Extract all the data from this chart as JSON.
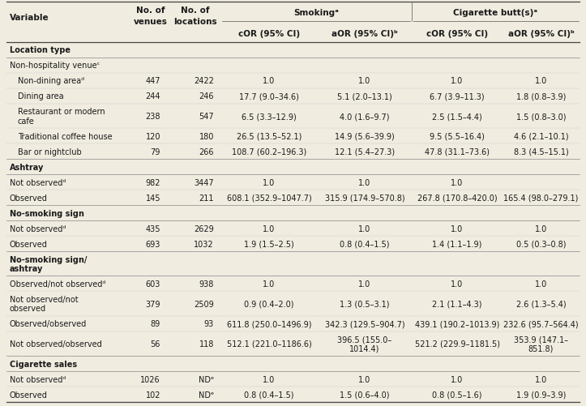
{
  "background_color": "#f0ece0",
  "text_color": "#1a1a1a",
  "smoking_header": "Smokingᵃ",
  "cigarette_header": "Cigarette butt(s)ᵃ",
  "col_sub_headers": [
    "cOR (95% CI)",
    "aOR (95% CI)ᵇ",
    "cOR (95% CI)",
    "aOR (95% CI)ᵇ"
  ],
  "rows": [
    {
      "label": "Location type",
      "bold": true,
      "indent": 0,
      "venues": "",
      "locations": "",
      "s_cor": "",
      "s_aor": "",
      "c_cor": "",
      "c_aor": "",
      "section_header": true,
      "multiline": false
    },
    {
      "label": "Non-hospitality venueᶜ",
      "bold": false,
      "indent": 0,
      "venues": "",
      "locations": "",
      "s_cor": "",
      "s_aor": "",
      "c_cor": "",
      "c_aor": "",
      "section_header": false,
      "multiline": false
    },
    {
      "label": "Non-dining areaᵈ",
      "bold": false,
      "indent": 1,
      "venues": "447",
      "locations": "2422",
      "s_cor": "1.0",
      "s_aor": "1.0",
      "c_cor": "1.0",
      "c_aor": "1.0",
      "section_header": false,
      "multiline": false
    },
    {
      "label": "Dining area",
      "bold": false,
      "indent": 1,
      "venues": "244",
      "locations": "246",
      "s_cor": "17.7 (9.0–34.6)",
      "s_aor": "5.1 (2.0–13.1)",
      "c_cor": "6.7 (3.9–11.3)",
      "c_aor": "1.8 (0.8–3.9)",
      "section_header": false,
      "multiline": false
    },
    {
      "label": "Restaurant or modern\ncafe",
      "bold": false,
      "indent": 1,
      "venues": "238",
      "locations": "547",
      "s_cor": "6.5 (3.3–12.9)",
      "s_aor": "4.0 (1.6–9.7)",
      "c_cor": "2.5 (1.5–4.4)",
      "c_aor": "1.5 (0.8–3.0)",
      "section_header": false,
      "multiline": true
    },
    {
      "label": "Traditional coffee house",
      "bold": false,
      "indent": 1,
      "venues": "120",
      "locations": "180",
      "s_cor": "26.5 (13.5–52.1)",
      "s_aor": "14.9 (5.6–39.9)",
      "c_cor": "9.5 (5.5–16.4)",
      "c_aor": "4.6 (2.1–10.1)",
      "section_header": false,
      "multiline": false
    },
    {
      "label": "Bar or nightclub",
      "bold": false,
      "indent": 1,
      "venues": "79",
      "locations": "266",
      "s_cor": "108.7 (60.2–196.3)",
      "s_aor": "12.1 (5.4–27.3)",
      "c_cor": "47.8 (31.1–73.6)",
      "c_aor": "8.3 (4.5–15.1)",
      "section_header": false,
      "multiline": false
    },
    {
      "label": "Ashtray",
      "bold": true,
      "indent": 0,
      "venues": "",
      "locations": "",
      "s_cor": "",
      "s_aor": "",
      "c_cor": "",
      "c_aor": "",
      "section_header": true,
      "multiline": false
    },
    {
      "label": "Not observedᵈ",
      "bold": false,
      "indent": 0,
      "venues": "982",
      "locations": "3447",
      "s_cor": "1.0",
      "s_aor": "1.0",
      "c_cor": "1.0",
      "c_aor": "",
      "section_header": false,
      "multiline": false
    },
    {
      "label": "Observed",
      "bold": false,
      "indent": 0,
      "venues": "145",
      "locations": "211",
      "s_cor": "608.1 (352.9–1047.7)",
      "s_aor": "315.9 (174.9–570.8)",
      "c_cor": "267.8 (170.8–420.0)",
      "c_aor": "165.4 (98.0–279.1)",
      "section_header": false,
      "multiline": false
    },
    {
      "label": "No-smoking sign",
      "bold": true,
      "indent": 0,
      "venues": "",
      "locations": "",
      "s_cor": "",
      "s_aor": "",
      "c_cor": "",
      "c_aor": "",
      "section_header": true,
      "multiline": false
    },
    {
      "label": "Not observedᵈ",
      "bold": false,
      "indent": 0,
      "venues": "435",
      "locations": "2629",
      "s_cor": "1.0",
      "s_aor": "1.0",
      "c_cor": "1.0",
      "c_aor": "1.0",
      "section_header": false,
      "multiline": false
    },
    {
      "label": "Observed",
      "bold": false,
      "indent": 0,
      "venues": "693",
      "locations": "1032",
      "s_cor": "1.9 (1.5–2.5)",
      "s_aor": "0.8 (0.4–1.5)",
      "c_cor": "1.4 (1.1–1.9)",
      "c_aor": "0.5 (0.3–0.8)",
      "section_header": false,
      "multiline": false
    },
    {
      "label": "No-smoking sign/\nashtray",
      "bold": true,
      "indent": 0,
      "venues": "",
      "locations": "",
      "s_cor": "",
      "s_aor": "",
      "c_cor": "",
      "c_aor": "",
      "section_header": true,
      "multiline": true
    },
    {
      "label": "Observed/not observedᵈ",
      "bold": false,
      "indent": 0,
      "venues": "603",
      "locations": "938",
      "s_cor": "1.0",
      "s_aor": "1.0",
      "c_cor": "1.0",
      "c_aor": "1.0",
      "section_header": false,
      "multiline": false
    },
    {
      "label": "Not observed/not\nobserved",
      "bold": false,
      "indent": 0,
      "venues": "379",
      "locations": "2509",
      "s_cor": "0.9 (0.4–2.0)",
      "s_aor": "1.3 (0.5–3.1)",
      "c_cor": "2.1 (1.1–4.3)",
      "c_aor": "2.6 (1.3–5.4)",
      "section_header": false,
      "multiline": true
    },
    {
      "label": "Observed/observed",
      "bold": false,
      "indent": 0,
      "venues": "89",
      "locations": "93",
      "s_cor": "611.8 (250.0–1496.9)",
      "s_aor": "342.3 (129.5–904.7)",
      "c_cor": "439.1 (190.2–1013.9)",
      "c_aor": "232.6 (95.7–564.4)",
      "section_header": false,
      "multiline": false
    },
    {
      "label": "Not observed/observed",
      "bold": false,
      "indent": 0,
      "venues": "56",
      "locations": "118",
      "s_cor": "512.1 (221.0–1186.6)",
      "s_aor": "396.5 (155.0–\n1014.4)",
      "c_cor": "521.2 (229.9–1181.5)",
      "c_aor": "353.9 (147.1–\n851.8)",
      "section_header": false,
      "multiline": true
    },
    {
      "label": "Cigarette sales",
      "bold": true,
      "indent": 0,
      "venues": "",
      "locations": "",
      "s_cor": "",
      "s_aor": "",
      "c_cor": "",
      "c_aor": "",
      "section_header": true,
      "multiline": false
    },
    {
      "label": "Not observedᵈ",
      "bold": false,
      "indent": 0,
      "venues": "1026",
      "locations": "NDᵉ",
      "s_cor": "1.0",
      "s_aor": "1.0",
      "c_cor": "1.0",
      "c_aor": "1.0",
      "section_header": false,
      "multiline": false
    },
    {
      "label": "Observed",
      "bold": false,
      "indent": 0,
      "venues": "102",
      "locations": "NDᵉ",
      "s_cor": "0.8 (0.4–1.5)",
      "s_aor": "1.5 (0.6–4.0)",
      "c_cor": "0.8 (0.5–1.6)",
      "c_aor": "1.9 (0.9–3.9)",
      "section_header": false,
      "multiline": false
    }
  ],
  "font_size": 7.0,
  "header_font_size": 7.5
}
